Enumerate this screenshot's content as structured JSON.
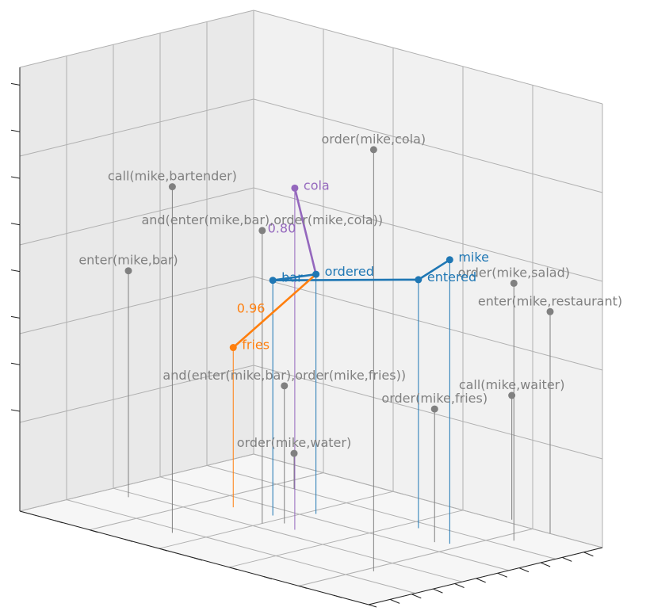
{
  "chart_data": {
    "type": "scatter",
    "projection": "3d",
    "grid": true,
    "title": "",
    "xlabel": "",
    "ylabel": "",
    "zlabel": "",
    "colors": {
      "proposition": "#808080",
      "entity": "#1f77b4",
      "fries_path": "#ff7f0e",
      "cola_path": "#9467bd",
      "pane_left": "#e9e9e9",
      "pane_right": "#f1f1f1",
      "pane_floor": "#f6f6f6",
      "gridline": "#b0b0b0"
    },
    "points": [
      {
        "label": "order(mike,cola)",
        "x": 0.82,
        "y": 0.29,
        "z": 0.95,
        "group": "proposition"
      },
      {
        "label": "call(mike,bartender)",
        "x": 0.33,
        "y": 0.16,
        "z": 0.78,
        "group": "proposition"
      },
      {
        "label": "and(enter(mike,bar),order(mike,cola))",
        "x": 0.4,
        "y": 0.44,
        "z": 0.66,
        "group": "proposition"
      },
      {
        "label": "order(mike,salad)",
        "x": 0.84,
        "y": 0.86,
        "z": 0.58,
        "group": "proposition"
      },
      {
        "label": "enter(mike,bar)",
        "x": 0.07,
        "y": 0.36,
        "z": 0.51,
        "group": "proposition"
      },
      {
        "label": "enter(mike,restaurant)",
        "x": 0.85,
        "y": 1.0,
        "z": 0.5,
        "group": "proposition"
      },
      {
        "label": "and(enter(mike,bar),order(mike,fries))",
        "x": 0.43,
        "y": 0.49,
        "z": 0.31,
        "group": "proposition"
      },
      {
        "label": "order(mike,fries)",
        "x": 0.74,
        "y": 0.67,
        "z": 0.3,
        "group": "proposition"
      },
      {
        "label": "call(mike,waiter)",
        "x": 0.72,
        "y": 1.03,
        "z": 0.28,
        "group": "proposition"
      },
      {
        "label": "order(mike,water)",
        "x": 0.25,
        "y": 0.8,
        "z": 0.08,
        "group": "proposition"
      },
      {
        "label": "bar",
        "x": 0.37,
        "y": 0.53,
        "z": 0.53,
        "group": "entity"
      },
      {
        "label": "mike",
        "x": 0.77,
        "y": 0.69,
        "z": 0.64,
        "group": "entity"
      },
      {
        "label": "entered",
        "x": 0.64,
        "y": 0.75,
        "z": 0.56,
        "group": "entity"
      },
      {
        "label": "ordered",
        "x": 0.42,
        "y": 0.64,
        "z": 0.54,
        "group": "entity"
      },
      {
        "label": "fries",
        "x": 0.27,
        "y": 0.51,
        "z": 0.36,
        "group": "fries_path"
      },
      {
        "label": "cola",
        "x": 0.48,
        "y": 0.46,
        "z": 0.77,
        "group": "cola_path"
      }
    ],
    "paths": [
      {
        "group": "entity",
        "points": [
          "mike",
          "entered",
          "bar",
          "ordered"
        ]
      },
      {
        "group": "fries_path",
        "points": [
          "ordered",
          "fries"
        ],
        "annotation": "0.96"
      },
      {
        "group": "cola_path",
        "points": [
          "ordered",
          "cola"
        ],
        "annotation": "0.80"
      }
    ]
  }
}
